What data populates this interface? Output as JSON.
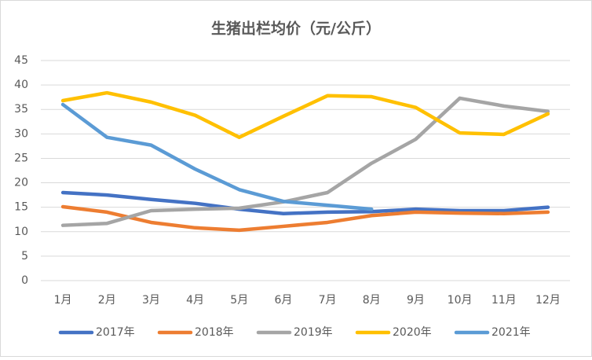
{
  "chart_data": {
    "type": "line",
    "title": "生猪出栏均价（元/公斤）",
    "categories": [
      "1月",
      "2月",
      "3月",
      "4月",
      "5月",
      "6月",
      "7月",
      "8月",
      "9月",
      "10月",
      "11月",
      "12月"
    ],
    "series": [
      {
        "name": "2017年",
        "color": "#4472c4",
        "values": [
          18.0,
          17.5,
          16.6,
          15.8,
          14.6,
          13.7,
          14.0,
          14.1,
          14.6,
          14.3,
          14.3,
          15.0
        ]
      },
      {
        "name": "2018年",
        "color": "#ed7d31",
        "values": [
          15.1,
          14.0,
          11.9,
          10.8,
          10.3,
          11.1,
          11.9,
          13.3,
          14.0,
          13.8,
          13.7,
          14.0
        ]
      },
      {
        "name": "2019年",
        "color": "#a5a5a5",
        "values": [
          11.3,
          11.7,
          14.3,
          14.6,
          14.8,
          16.1,
          18.0,
          24.0,
          28.9,
          37.3,
          35.7,
          34.6
        ]
      },
      {
        "name": "2020年",
        "color": "#ffc000",
        "values": [
          36.8,
          38.4,
          36.5,
          33.8,
          29.3,
          33.6,
          37.8,
          37.6,
          35.4,
          30.2,
          29.9,
          34.1
        ]
      },
      {
        "name": "2021年",
        "color": "#5b9bd5",
        "values": [
          36.0,
          29.3,
          27.7,
          22.8,
          18.6,
          16.2,
          15.4,
          14.6,
          null,
          null,
          null,
          null
        ]
      }
    ],
    "ylim": [
      0,
      45
    ],
    "yticks": [
      0,
      5,
      10,
      15,
      20,
      25,
      30,
      35,
      40,
      45
    ],
    "grid": true,
    "legend": "bottom"
  }
}
